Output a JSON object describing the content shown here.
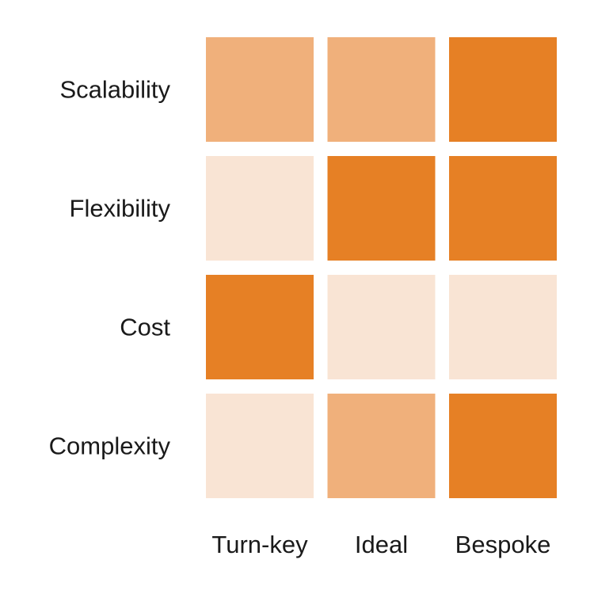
{
  "chart_data": {
    "type": "heatmap",
    "rows": [
      "Scalability",
      "Flexibility",
      "Cost",
      "Complexity"
    ],
    "columns": [
      "Turn-key",
      "Ideal",
      "Bespoke"
    ],
    "levels": [
      [
        2,
        2,
        3
      ],
      [
        1,
        3,
        3
      ],
      [
        3,
        1,
        1
      ],
      [
        1,
        2,
        3
      ]
    ],
    "level_colors": {
      "1": "#f9e4d4",
      "2": "#f0b07b",
      "3": "#e68025"
    },
    "grid": false,
    "legend": "none"
  }
}
